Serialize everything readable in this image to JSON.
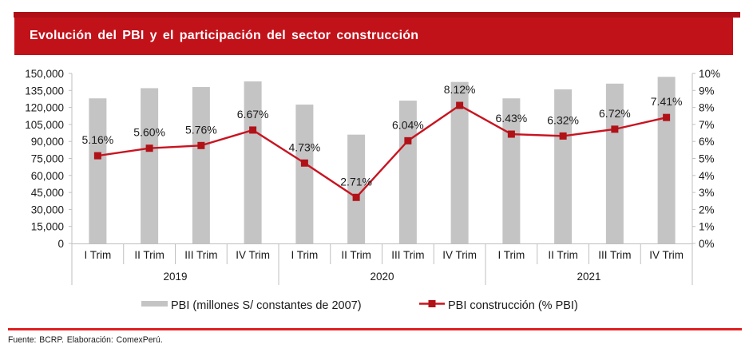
{
  "title": "Evolución del PBI y el participación del sector construcción",
  "colors": {
    "top_strip": "#AF0F16",
    "title_bar_bg": "#C1121A",
    "title_text": "#FFFFFF",
    "bar_fill": "#C4C4C4",
    "line_color": "#C81420",
    "marker_color": "#B01218",
    "axis_line": "#BFBFBF",
    "tick_text": "#1A1A1A",
    "footer_line": "#E02020"
  },
  "chart_data": {
    "type": "bar+line combo",
    "categories": [
      "I Trim",
      "II Trim",
      "III Trim",
      "IV Trim",
      "I Trim",
      "II Trim",
      "III Trim",
      "IV Trim",
      "I Trim",
      "II Trim",
      "III Trim",
      "IV Trim"
    ],
    "year_groups": [
      {
        "label": "2019",
        "span": 4
      },
      {
        "label": "2020",
        "span": 4
      },
      {
        "label": "2021",
        "span": 4
      }
    ],
    "series": [
      {
        "name": "PBI (millones S/ constantes de 2007)",
        "type": "bar",
        "axis": "left",
        "values": [
          128000,
          137000,
          138000,
          143000,
          122500,
          96000,
          126000,
          142500,
          128000,
          136000,
          141000,
          147000
        ]
      },
      {
        "name": "PBI construcción (% PBI)",
        "type": "line",
        "axis": "right",
        "values": [
          5.16,
          5.6,
          5.76,
          6.67,
          4.73,
          2.71,
          6.04,
          8.12,
          6.43,
          6.32,
          6.72,
          7.41
        ],
        "point_labels": [
          "5.16%",
          "5.60%",
          "5.76%",
          "6.67%",
          "4.73%",
          "2.71%",
          "6.04%",
          "8.12%",
          "6.43%",
          "6.32%",
          "6.72%",
          "7.41%"
        ]
      }
    ],
    "left_axis": {
      "min": 0,
      "max": 150000,
      "step": 15000,
      "tick_labels": [
        "0",
        "15,000",
        "30,000",
        "45,000",
        "60,000",
        "75,000",
        "90,000",
        "105,000",
        "120,000",
        "135,000",
        "150,000"
      ]
    },
    "right_axis": {
      "min": 0,
      "max": 10,
      "step": 1,
      "tick_labels": [
        "0%",
        "1%",
        "2%",
        "3%",
        "4%",
        "5%",
        "6%",
        "7%",
        "8%",
        "9%",
        "10%"
      ]
    },
    "grid": false,
    "legend_position": "bottom"
  },
  "footer": "Fuente: BCRP. Elaboración: ComexPerú."
}
